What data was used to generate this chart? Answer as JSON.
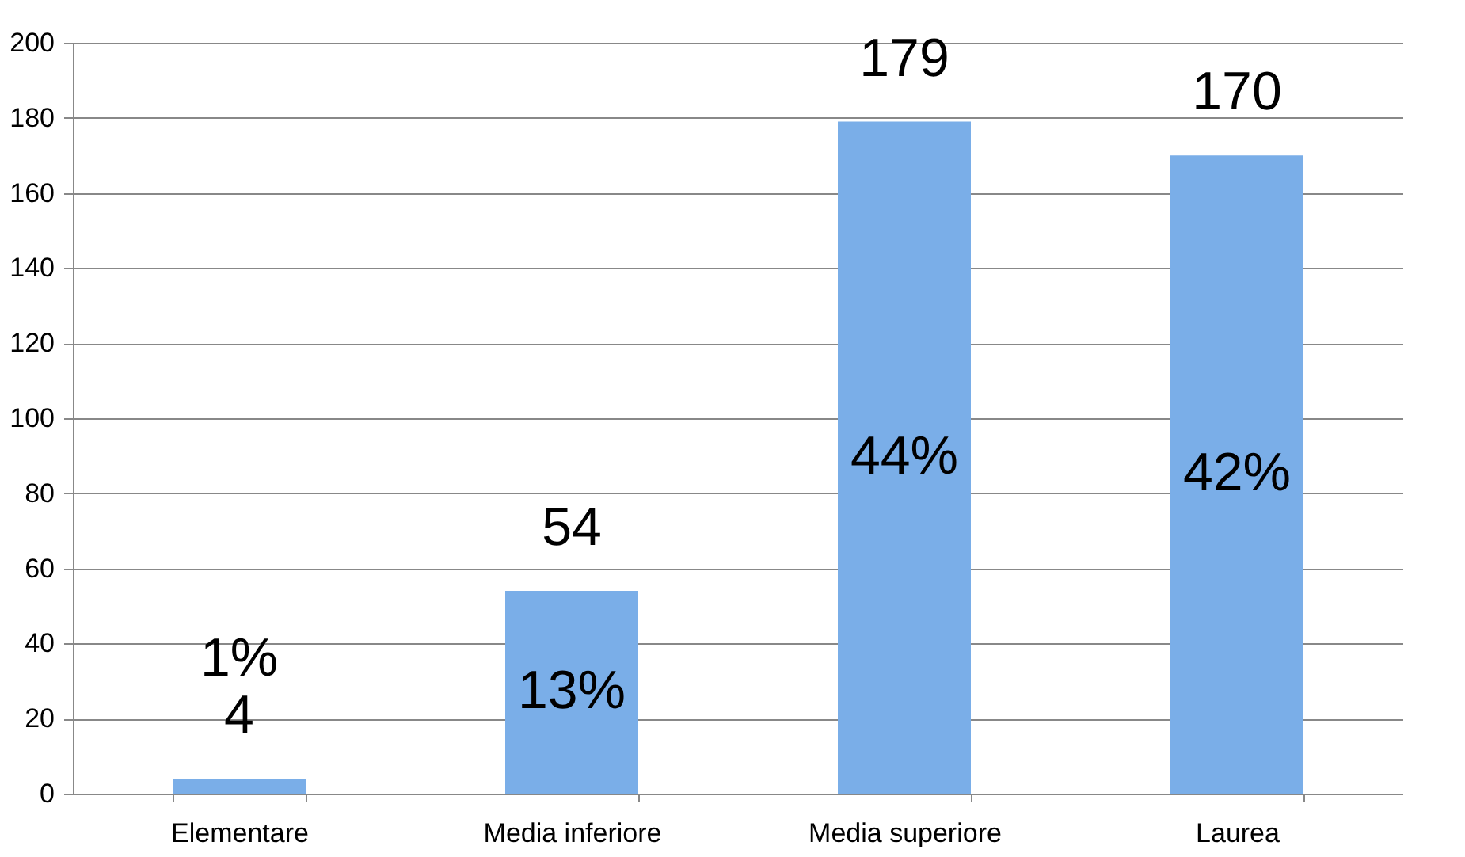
{
  "chart_data": {
    "type": "bar",
    "categories": [
      "Elementare",
      "Media inferiore",
      "Media superiore",
      "Laurea"
    ],
    "values": [
      4,
      54,
      179,
      170
    ],
    "color": "#7aaee8",
    "data_labels": true,
    "ylim": [
      0,
      200
    ],
    "yticks": [
      0,
      20,
      40,
      60,
      80,
      100,
      120,
      140,
      160,
      180,
      200
    ],
    "grid": "y",
    "annotations": [
      "1%",
      "13%",
      "44%",
      "42%"
    ]
  }
}
